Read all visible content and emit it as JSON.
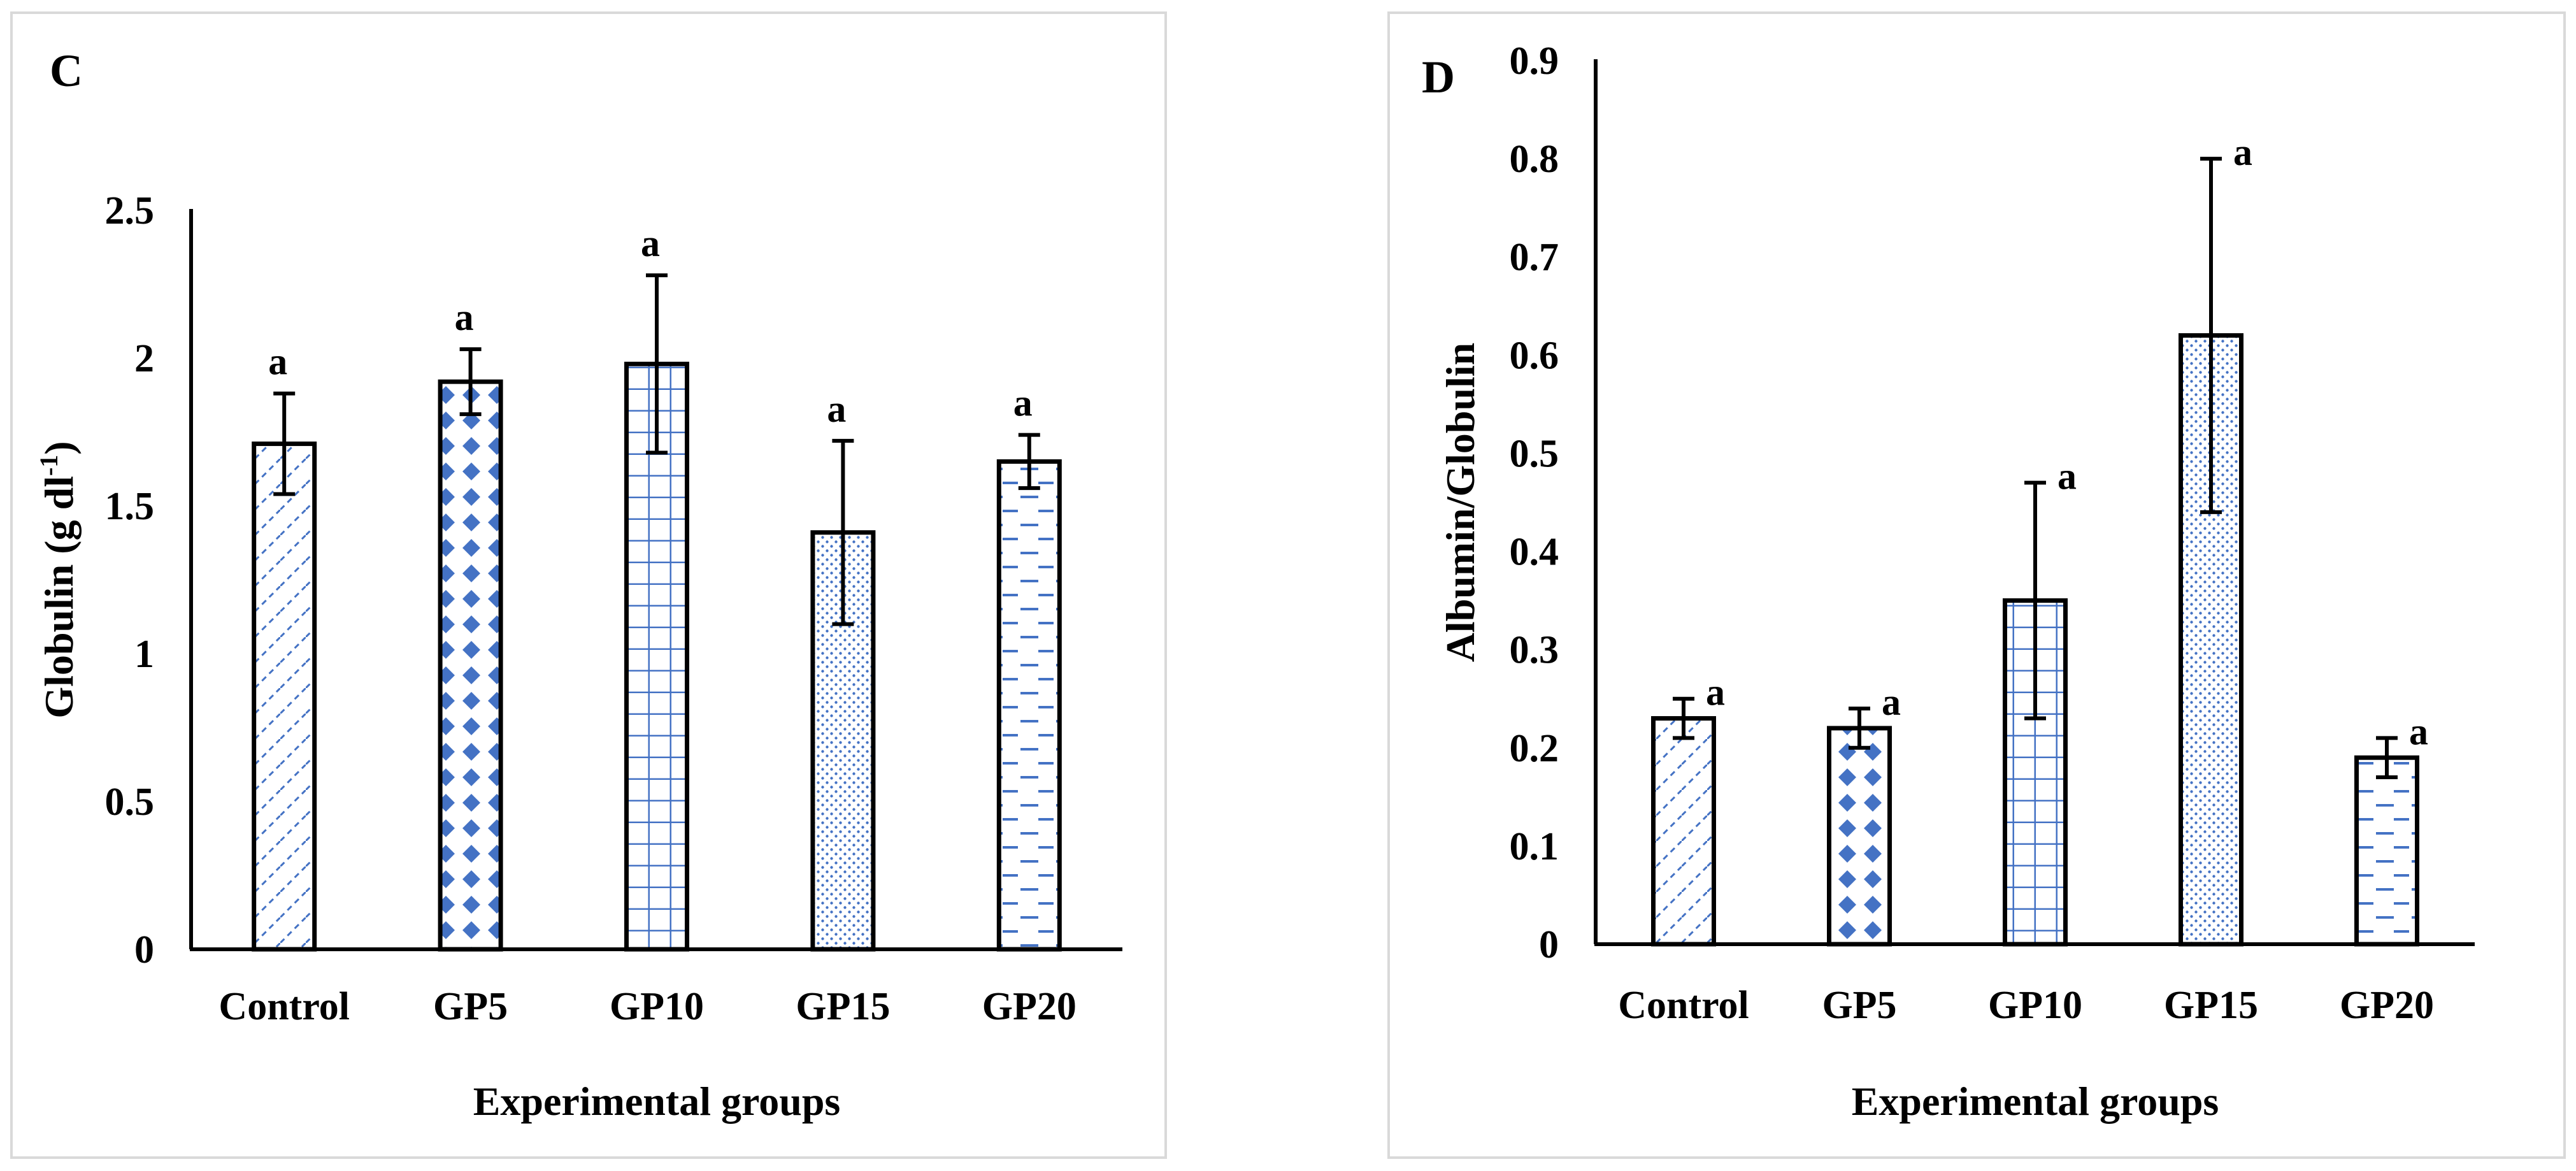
{
  "chart_data": [
    {
      "type": "bar",
      "panel_label": "C",
      "categories": [
        "Control",
        "GP5",
        "GP10",
        "GP15",
        "GP20"
      ],
      "values": [
        1.71,
        1.92,
        1.98,
        1.41,
        1.65
      ],
      "errors": [
        0.17,
        0.11,
        0.3,
        0.31,
        0.09
      ],
      "significance": [
        "a",
        "a",
        "a",
        "a",
        "a"
      ],
      "patterns": [
        "diagonal",
        "diamonds",
        "grid",
        "dots",
        "dashes"
      ],
      "ylabel": "Globulin (g dl",
      "ylabel_sup": "-1",
      "ylabel_tail": ")",
      "xlabel": "Experimental groups",
      "ylim": [
        0,
        2.5
      ],
      "yticks": [
        0,
        0.5,
        1,
        1.5,
        2,
        2.5
      ],
      "ytick_labels": [
        "0",
        "0.5",
        "1",
        "1.5",
        "2",
        "2.5"
      ],
      "grid": false
    },
    {
      "type": "bar",
      "panel_label": "D",
      "categories": [
        "Control",
        "GP5",
        "GP10",
        "GP15",
        "GP20"
      ],
      "values": [
        0.23,
        0.22,
        0.35,
        0.62,
        0.19
      ],
      "errors": [
        0.02,
        0.02,
        0.12,
        0.18,
        0.02
      ],
      "significance": [
        "a",
        "a",
        "a",
        "a",
        "a"
      ],
      "patterns": [
        "diagonal",
        "diamonds",
        "grid",
        "dots",
        "dashes"
      ],
      "ylabel": "Albumin/Globulin",
      "ylabel_sup": "",
      "ylabel_tail": "",
      "xlabel": "Experimental groups",
      "ylim": [
        0,
        0.9
      ],
      "yticks": [
        0,
        0.1,
        0.2,
        0.3,
        0.4,
        0.5,
        0.6,
        0.7,
        0.8,
        0.9
      ],
      "ytick_labels": [
        "0",
        "0.1",
        "0.2",
        "0.3",
        "0.4",
        "0.5",
        "0.6",
        "0.7",
        "0.8",
        "0.9"
      ],
      "grid": false
    }
  ],
  "colors": {
    "pattern": "#4472c4",
    "axis": "#000000",
    "frame": "#d9d9d9"
  }
}
